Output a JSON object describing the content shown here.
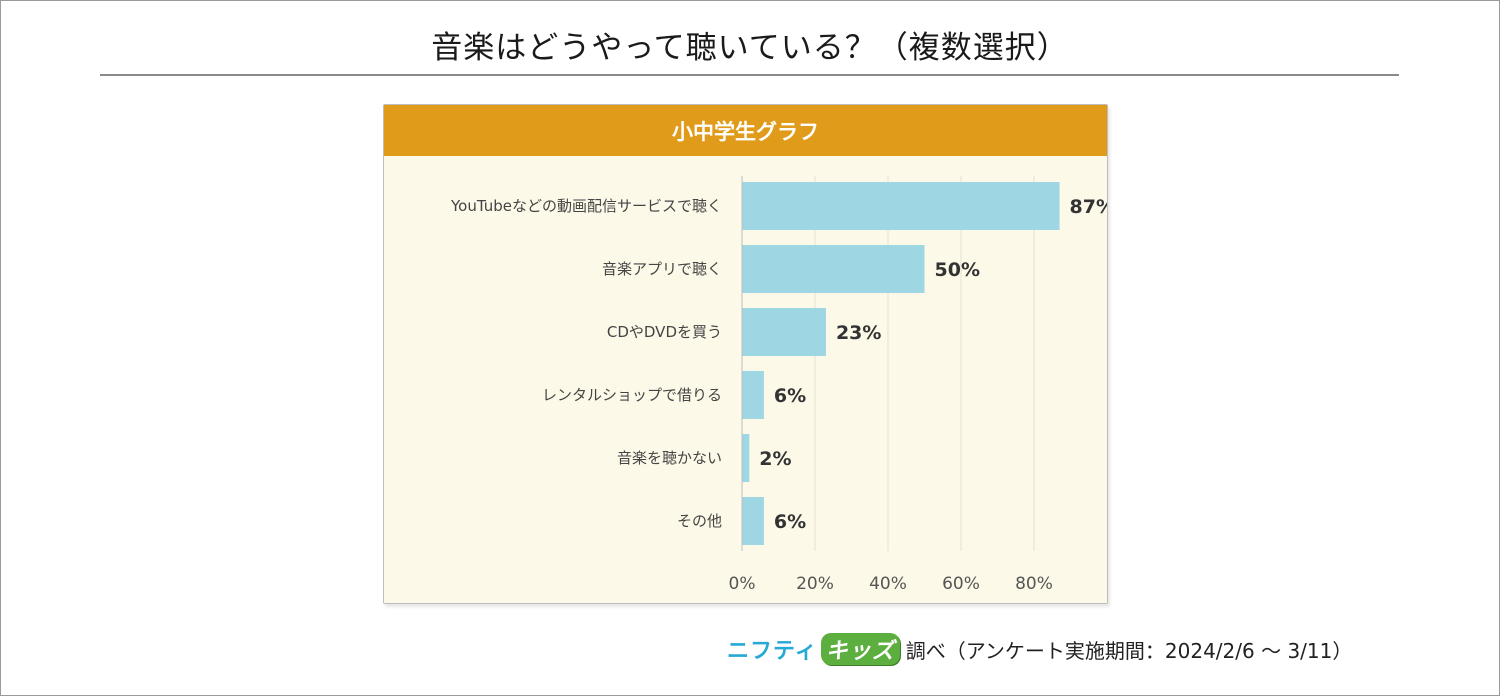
{
  "title": "音楽はどうやって聴いている？（複数選択）",
  "panel_title": "小中学生グラフ",
  "credit": {
    "brand_part1": "ニフティ",
    "brand_part2": "キッズ",
    "text": "調べ（アンケート実施期間：2024/2/6 ～ 3/11）"
  },
  "colors": {
    "bar": "#9ed6e3",
    "header": "#e09b1a",
    "panel_bg": "#fdf9e9",
    "grid": "#e5e1d0"
  },
  "chart_data": {
    "type": "bar",
    "orientation": "horizontal",
    "title": "小中学生グラフ",
    "categories": [
      "YouTubeなどの動画配信サービスで聴く",
      "音楽アプリで聴く",
      "CDやDVDを買う",
      "レンタルショップで借りる",
      "音楽を聴かない",
      "その他"
    ],
    "values": [
      87,
      50,
      23,
      6,
      2,
      6
    ],
    "value_labels": [
      "87%",
      "50%",
      "23%",
      "6%",
      "2%",
      "6%"
    ],
    "xlim": [
      0,
      100
    ],
    "xticks": [
      0,
      20,
      40,
      60,
      80
    ],
    "xtick_labels": [
      "0%",
      "20%",
      "40%",
      "60%",
      "80%"
    ],
    "grid": true
  }
}
